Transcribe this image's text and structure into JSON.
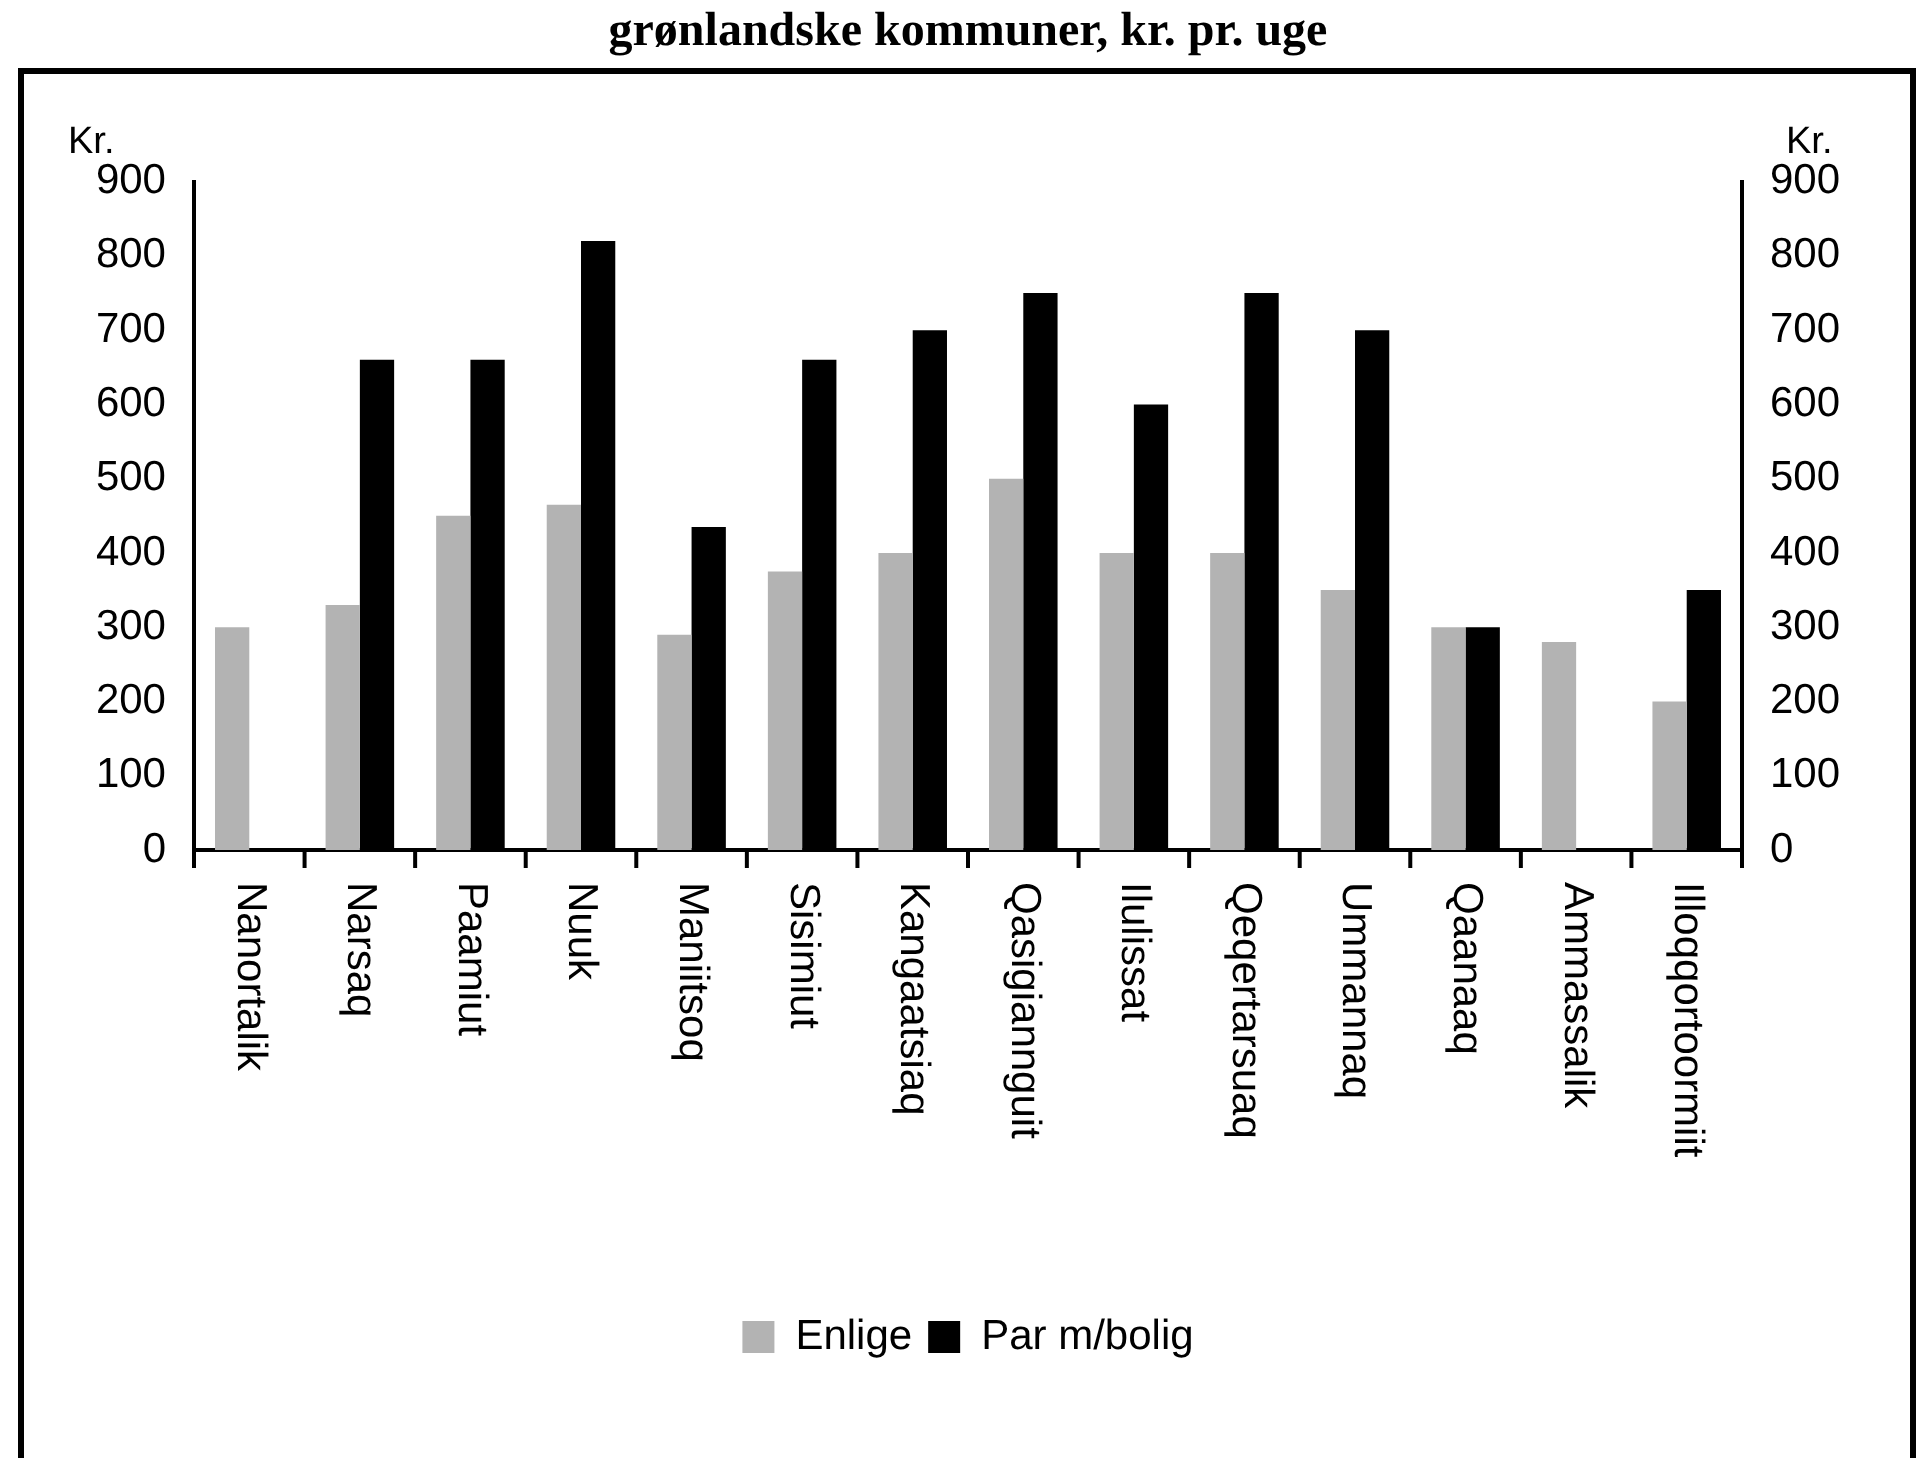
{
  "chart_data": {
    "type": "bar",
    "title": "grønlandske kommuner, kr. pr. uge",
    "ylabel": "Kr.",
    "y2label": "Kr.",
    "categories": [
      "Nanortalik",
      "Narsaq",
      "Paamiut",
      "Nuuk",
      "Maniitsoq",
      "Sisimiut",
      "Kangaatsiaq",
      "Qasigiannguit",
      "Ilulissat",
      "Qeqertarsuaq",
      "Ummannaq",
      "Qaanaaq",
      "Ammassalik",
      "Illoqqortoormiit"
    ],
    "series": [
      {
        "name": "Enlige",
        "color": "#b3b3b3",
        "values": [
          300,
          330,
          450,
          465,
          290,
          375,
          400,
          500,
          400,
          400,
          350,
          300,
          280,
          200
        ]
      },
      {
        "name": "Par m/bolig",
        "color": "#000000",
        "values": [
          null,
          660,
          660,
          820,
          435,
          660,
          700,
          750,
          600,
          750,
          700,
          300,
          null,
          350
        ]
      }
    ],
    "ylim": [
      0,
      900
    ],
    "yticks": [
      0,
      100,
      200,
      300,
      400,
      500,
      600,
      700,
      800,
      900
    ],
    "y2lim": [
      0,
      900
    ],
    "y2ticks": [
      0,
      100,
      200,
      300,
      400,
      500,
      600,
      700,
      800,
      900
    ],
    "grid": false,
    "legend": "bottom"
  }
}
